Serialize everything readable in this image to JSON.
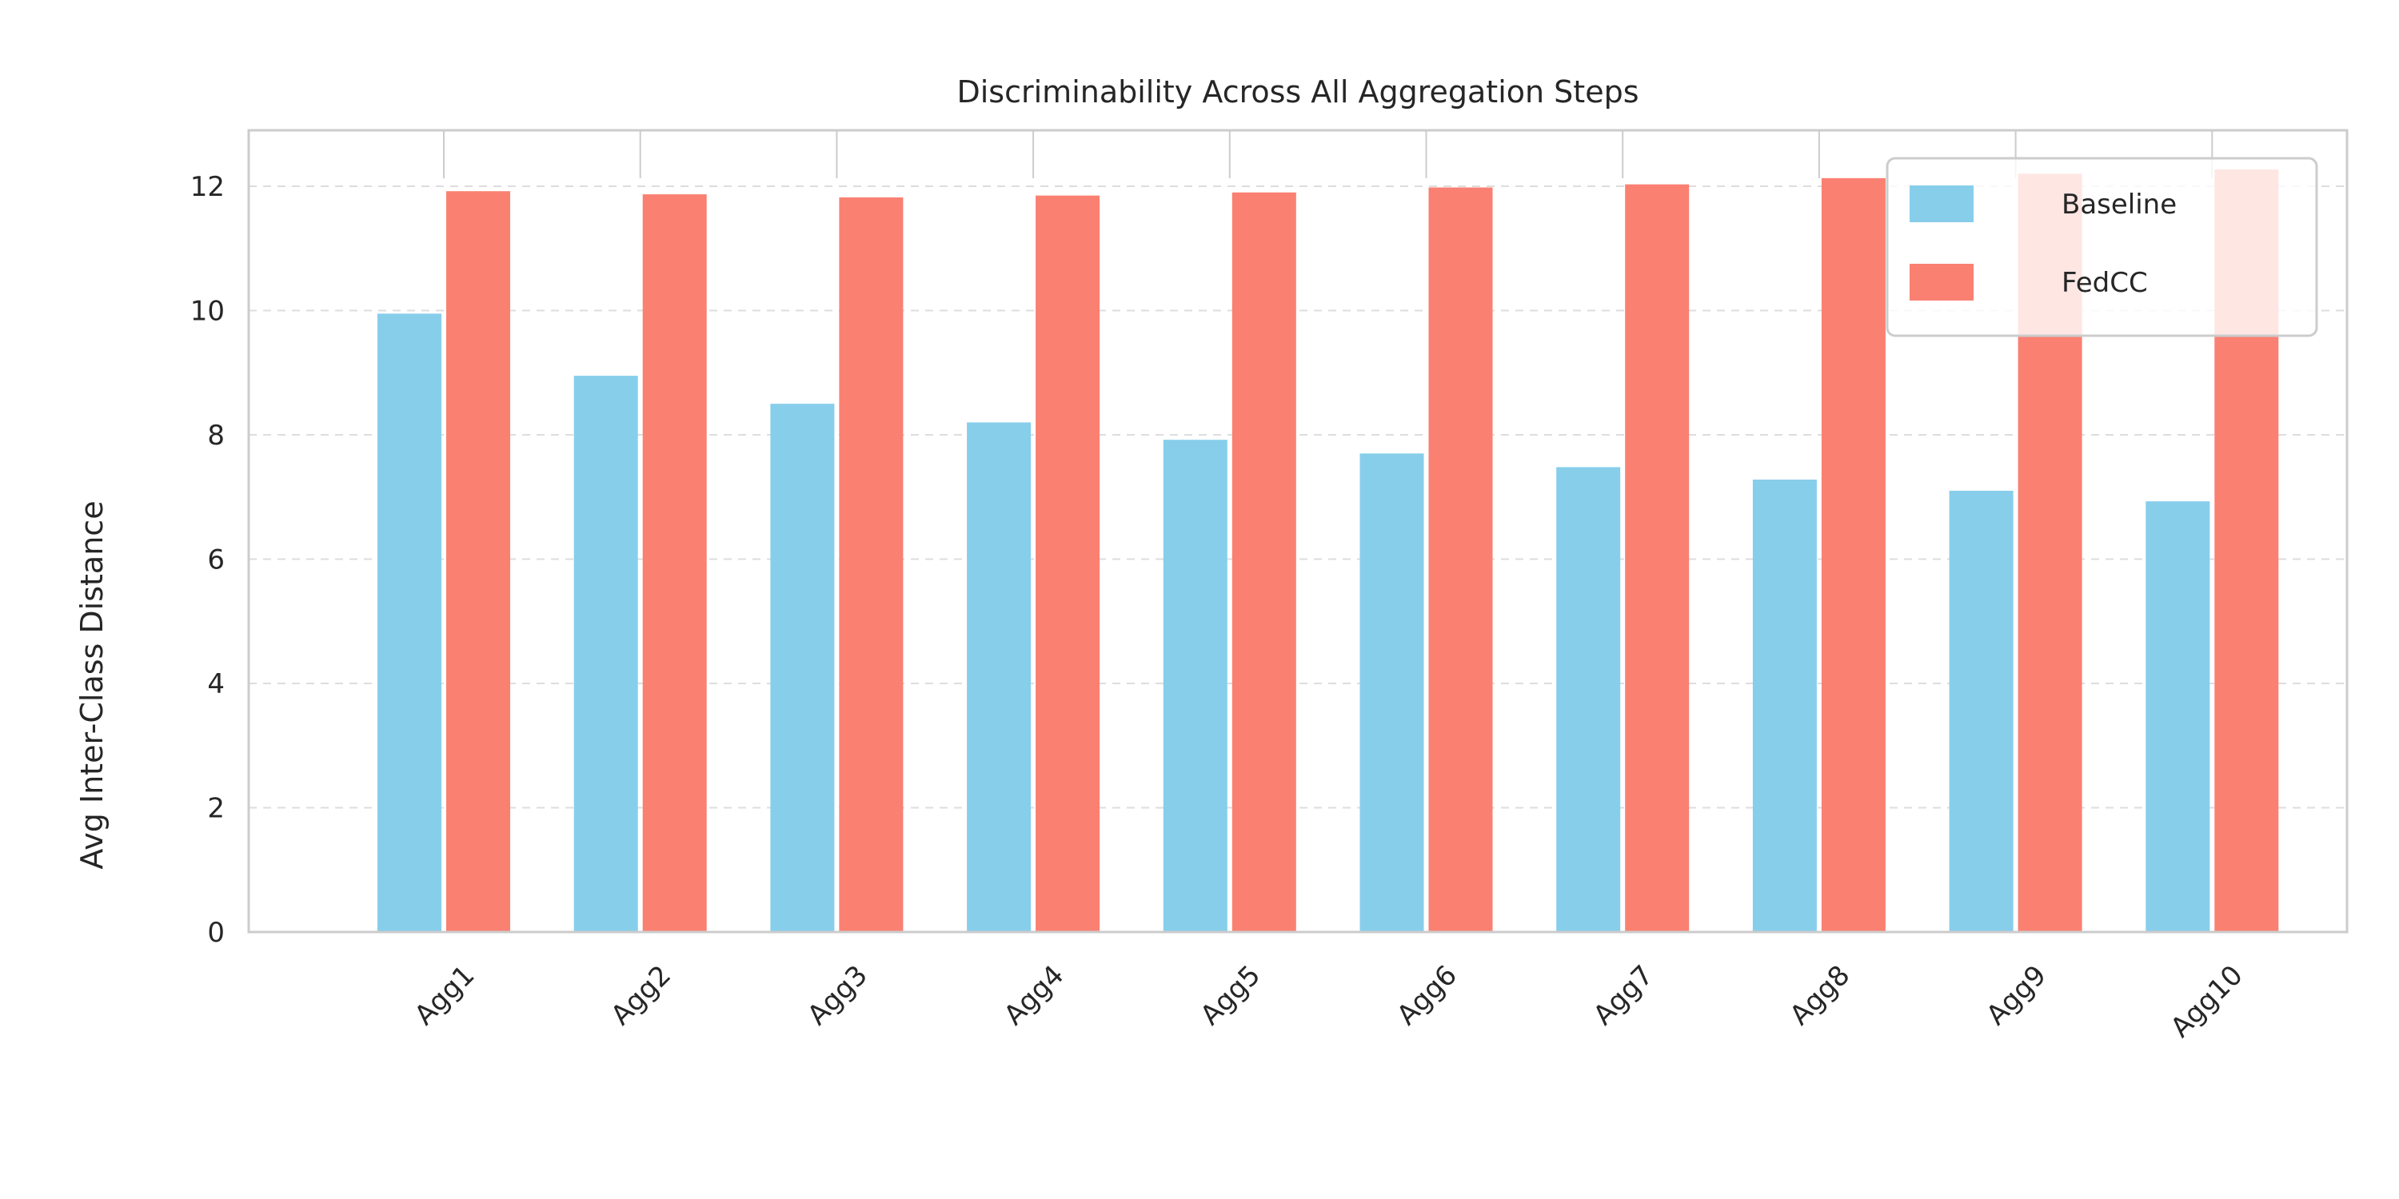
{
  "chart_data": {
    "type": "bar",
    "title": "Discriminability Across All Aggregation Steps",
    "xlabel": "",
    "ylabel": "Avg Inter-Class Distance",
    "ylim": [
      0,
      12.9
    ],
    "yticks": [
      0,
      2,
      4,
      6,
      8,
      10,
      12
    ],
    "grid": true,
    "legend_position": "top-right",
    "categories": [
      "Agg1",
      "Agg2",
      "Agg3",
      "Agg4",
      "Agg5",
      "Agg6",
      "Agg7",
      "Agg8",
      "Agg9",
      "Agg10"
    ],
    "series": [
      {
        "name": "Baseline",
        "color": "#87ceeb",
        "values": [
          9.95,
          8.95,
          8.5,
          8.2,
          7.92,
          7.7,
          7.48,
          7.28,
          7.1,
          6.93
        ]
      },
      {
        "name": "FedCC",
        "color": "#fa8072",
        "values": [
          11.92,
          11.87,
          11.82,
          11.85,
          11.9,
          11.98,
          12.03,
          12.13,
          12.2,
          12.27
        ]
      }
    ]
  }
}
